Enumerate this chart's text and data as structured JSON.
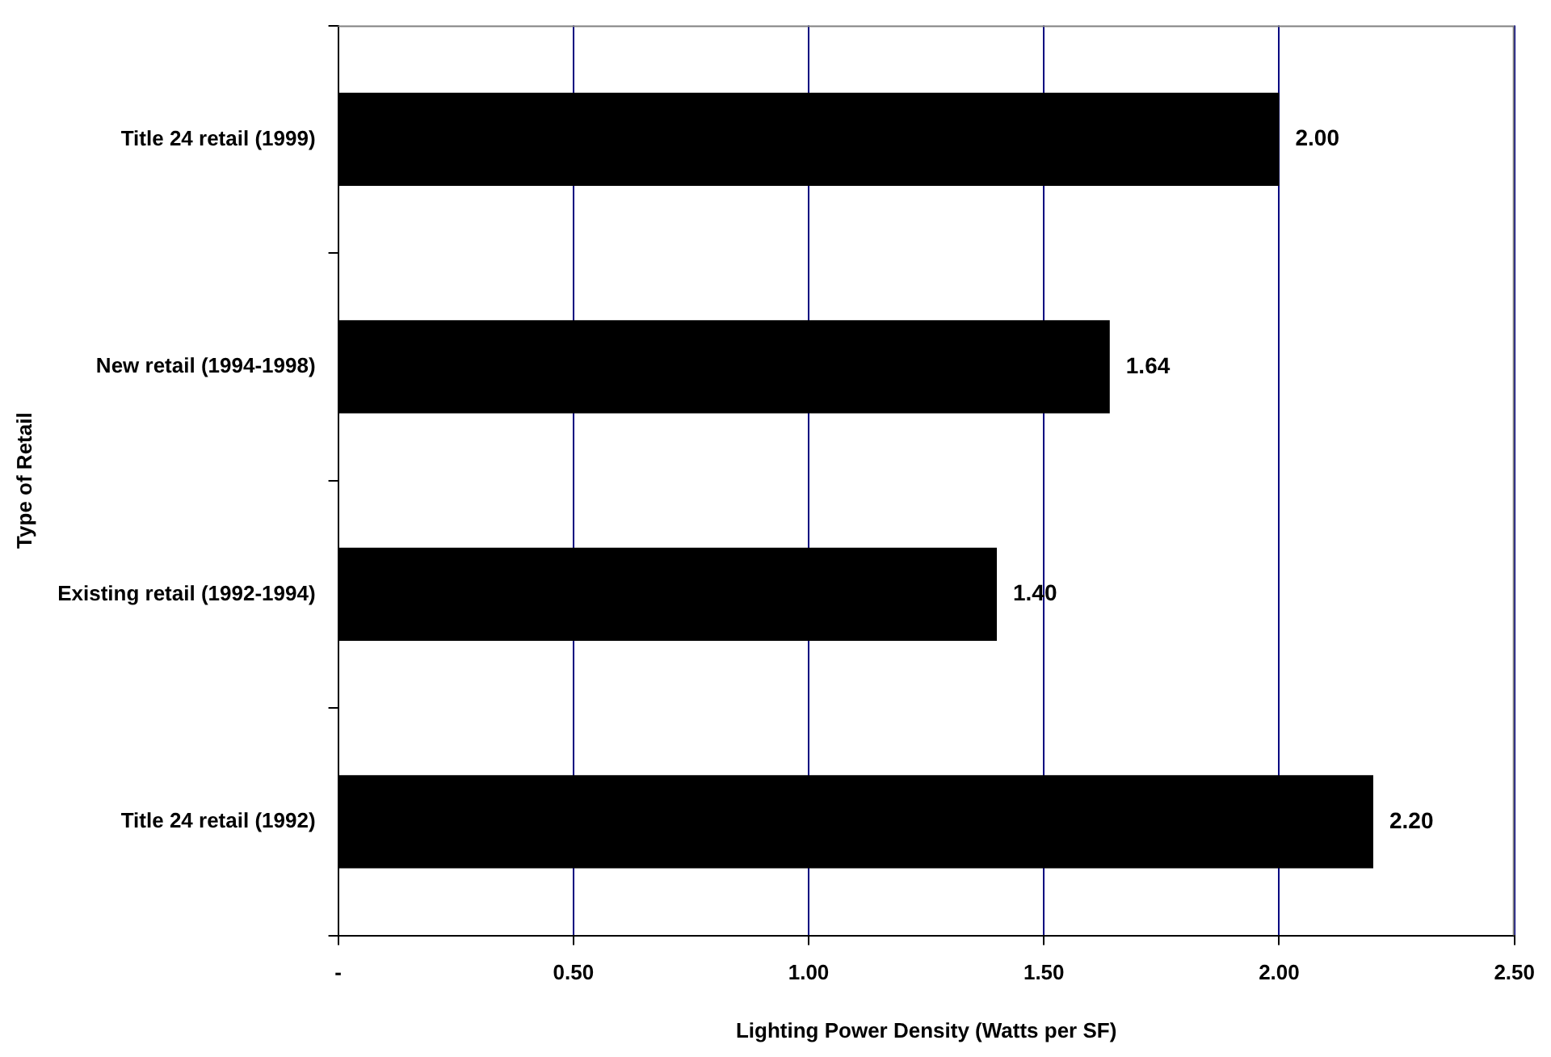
{
  "chart_data": {
    "type": "bar",
    "orientation": "horizontal",
    "xlabel": "Lighting Power Density (Watts per SF)",
    "ylabel": "Type of Retail",
    "categories": [
      "Title 24 retail (1999)",
      "New retail (1994-1998)",
      "Existing retail (1992-1994)",
      "Title 24 retail (1992)"
    ],
    "values": [
      2.0,
      1.64,
      1.4,
      2.2
    ],
    "color": "#000000",
    "value_labels": [
      "2.00",
      "1.64",
      "1.40",
      "2.20"
    ],
    "xlim": [
      0,
      2.5
    ],
    "xticks": [
      {
        "value": 0,
        "label": "-"
      },
      {
        "value": 0.5,
        "label": "0.50"
      },
      {
        "value": 1,
        "label": "1.00"
      },
      {
        "value": 1.5,
        "label": "1.50"
      },
      {
        "value": 2,
        "label": "2.00"
      },
      {
        "value": 2.5,
        "label": "2.50"
      }
    ],
    "grid": "x",
    "legend": false
  }
}
